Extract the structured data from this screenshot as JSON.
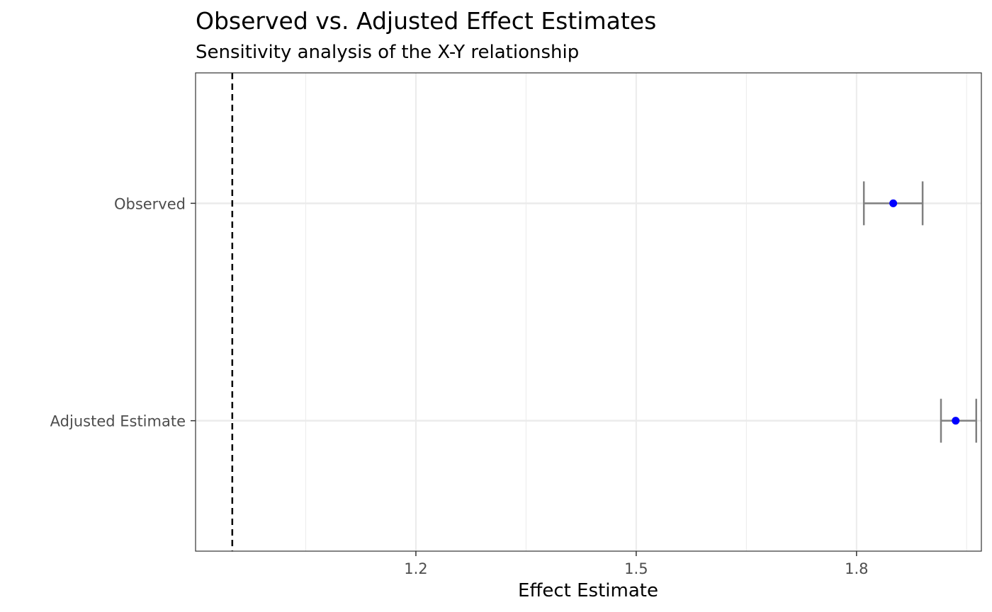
{
  "chart_data": {
    "type": "scatter",
    "subtype": "forest-plot",
    "title": "Observed vs. Adjusted Effect Estimates",
    "subtitle": "Sensitivity analysis of the X-Y relationship",
    "xlabel": "Effect Estimate",
    "ylabel": "",
    "categories": [
      "Observed",
      "Adjusted Estimate"
    ],
    "x_ticks": [
      1.2,
      1.5,
      1.8
    ],
    "x_tick_labels": [
      "1.2",
      "1.5",
      "1.8"
    ],
    "xlim": [
      0.9,
      1.97
    ],
    "reference_line": {
      "x": 0.95,
      "style": "dashed",
      "color": "#000000"
    },
    "points": [
      {
        "label": "Observed",
        "estimate": 1.85,
        "lower": 1.81,
        "upper": 1.89
      },
      {
        "label": "Adjusted Estimate",
        "estimate": 1.935,
        "lower": 1.915,
        "upper": 1.963
      }
    ],
    "point_color": "#0000ff",
    "errorbar_color": "#808080",
    "grid": true,
    "legend": "none"
  }
}
